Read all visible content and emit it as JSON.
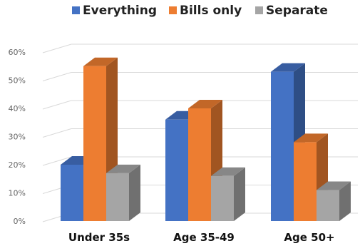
{
  "chart_data": {
    "type": "bar",
    "style": "3d-clustered-column",
    "categories": [
      "Under 35s",
      "Age 35-49",
      "Age 50+"
    ],
    "series": [
      {
        "name": "Everything",
        "color": "#4472C4",
        "values": [
          20,
          36,
          53
        ]
      },
      {
        "name": "Bills only",
        "color": "#ED7D31",
        "values": [
          55,
          40,
          28
        ]
      },
      {
        "name": "Separate",
        "color": "#A5A5A5",
        "values": [
          17,
          16,
          11
        ]
      }
    ],
    "yticks": [
      "0%",
      "10%",
      "20%",
      "30%",
      "40%",
      "50%",
      "60%"
    ],
    "ylim": [
      0,
      60
    ],
    "grid": true,
    "legend": "top-center"
  }
}
